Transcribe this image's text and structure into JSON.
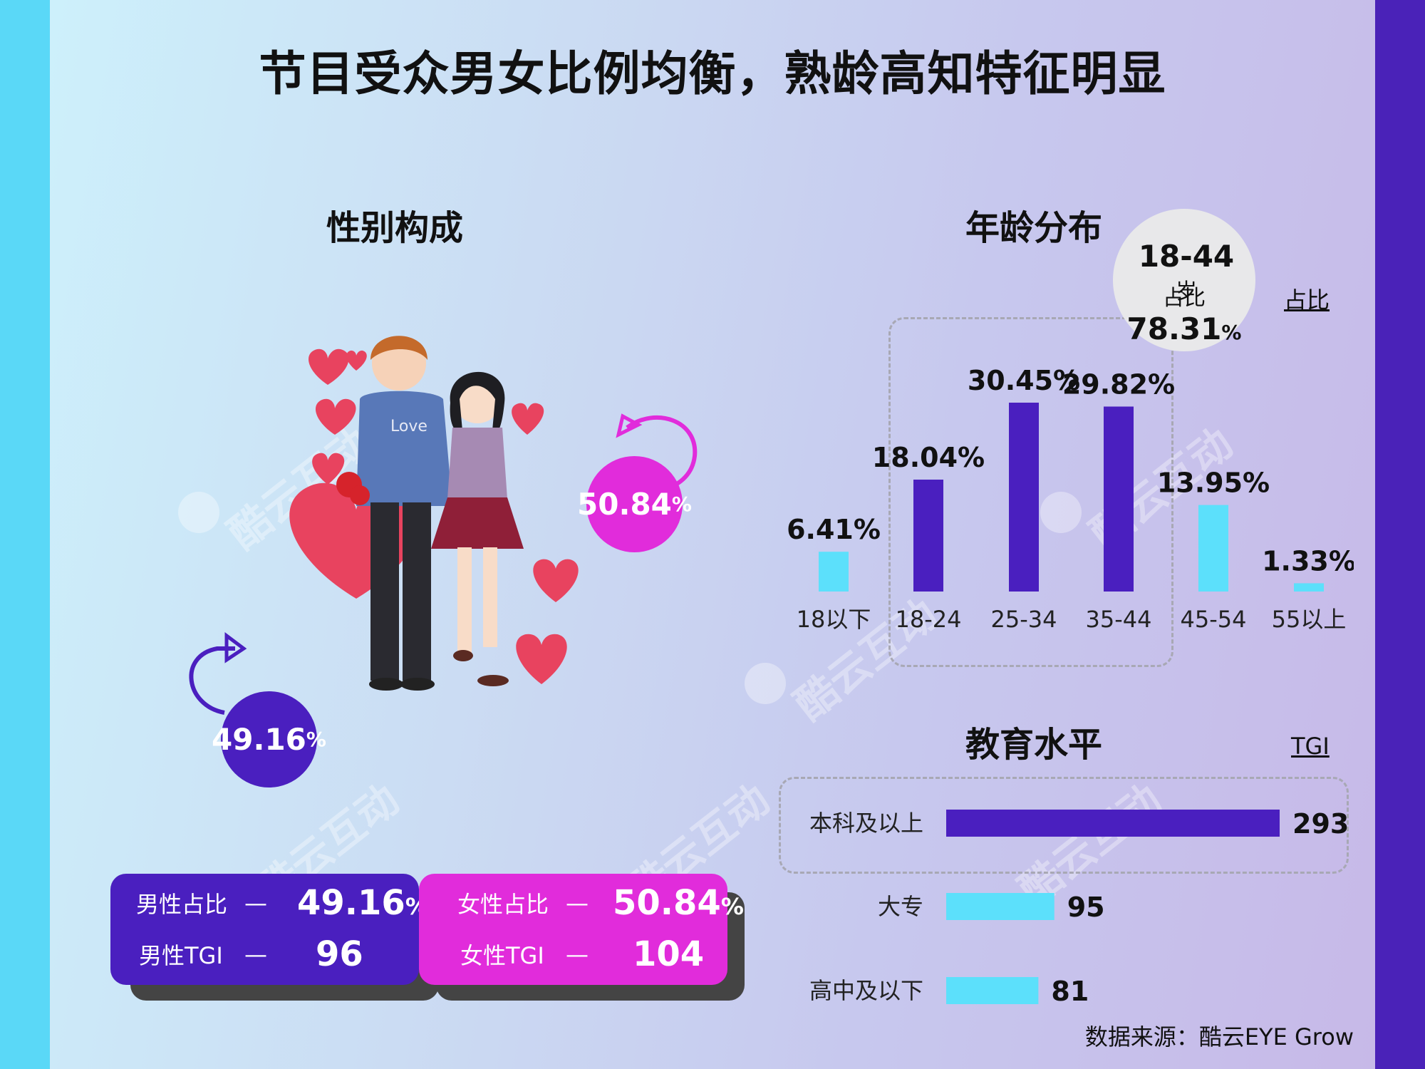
{
  "title": "节目受众男女比例均衡，熟龄高知特征明显",
  "colors": {
    "purple": "#4a1fbf",
    "cyan": "#5ce0fb",
    "magenta": "#e12cdb",
    "heart": "#e8435f",
    "left_strip": "#5ad8f7",
    "right_strip": "#4a22b8"
  },
  "watermark": "酷云互动",
  "gender": {
    "title": "性别构成",
    "female_pct": "50.84",
    "male_pct": "49.16",
    "pct_sign": "%",
    "male_card": {
      "ratio_label": "男性占比",
      "tgi_label": "男性TGI",
      "dash": "—",
      "ratio_value": "49.16",
      "tgi_value": "96"
    },
    "female_card": {
      "ratio_label": "女性占比",
      "tgi_label": "女性TGI",
      "dash": "—",
      "ratio_value": "50.84",
      "tgi_value": "104"
    },
    "illustration_text": "Love"
  },
  "age": {
    "title": "年龄分布",
    "badge_range": "18-44",
    "badge_unit": "岁",
    "badge_prefix": "占比",
    "badge_value": "78.31",
    "badge_pct": "%",
    "link_label": "占比"
  },
  "education": {
    "title": "教育水平",
    "link_label": "TGI"
  },
  "chart_data": [
    {
      "type": "bar",
      "title": "年龄分布",
      "categories": [
        "18以下",
        "18-24",
        "25-34",
        "35-44",
        "45-54",
        "55以上"
      ],
      "values": [
        6.41,
        18.04,
        30.45,
        29.82,
        13.95,
        1.33
      ],
      "labels": [
        "6.41%",
        "18.04%",
        "30.45%",
        "29.82%",
        "13.95%",
        "1.33%"
      ],
      "colors": [
        "#5ce0fb",
        "#4a1fbf",
        "#4a1fbf",
        "#4a1fbf",
        "#5ce0fb",
        "#5ce0fb"
      ],
      "unit": "%"
    },
    {
      "type": "bar",
      "orientation": "horizontal",
      "title": "教育水平",
      "categories": [
        "本科及以上",
        "大专",
        "高中及以下"
      ],
      "values": [
        293,
        95,
        81
      ],
      "colors": [
        "#4a1fbf",
        "#5ce0fb",
        "#5ce0fb"
      ],
      "unit": "TGI"
    }
  ],
  "source": "数据来源：酷云EYE Grow"
}
